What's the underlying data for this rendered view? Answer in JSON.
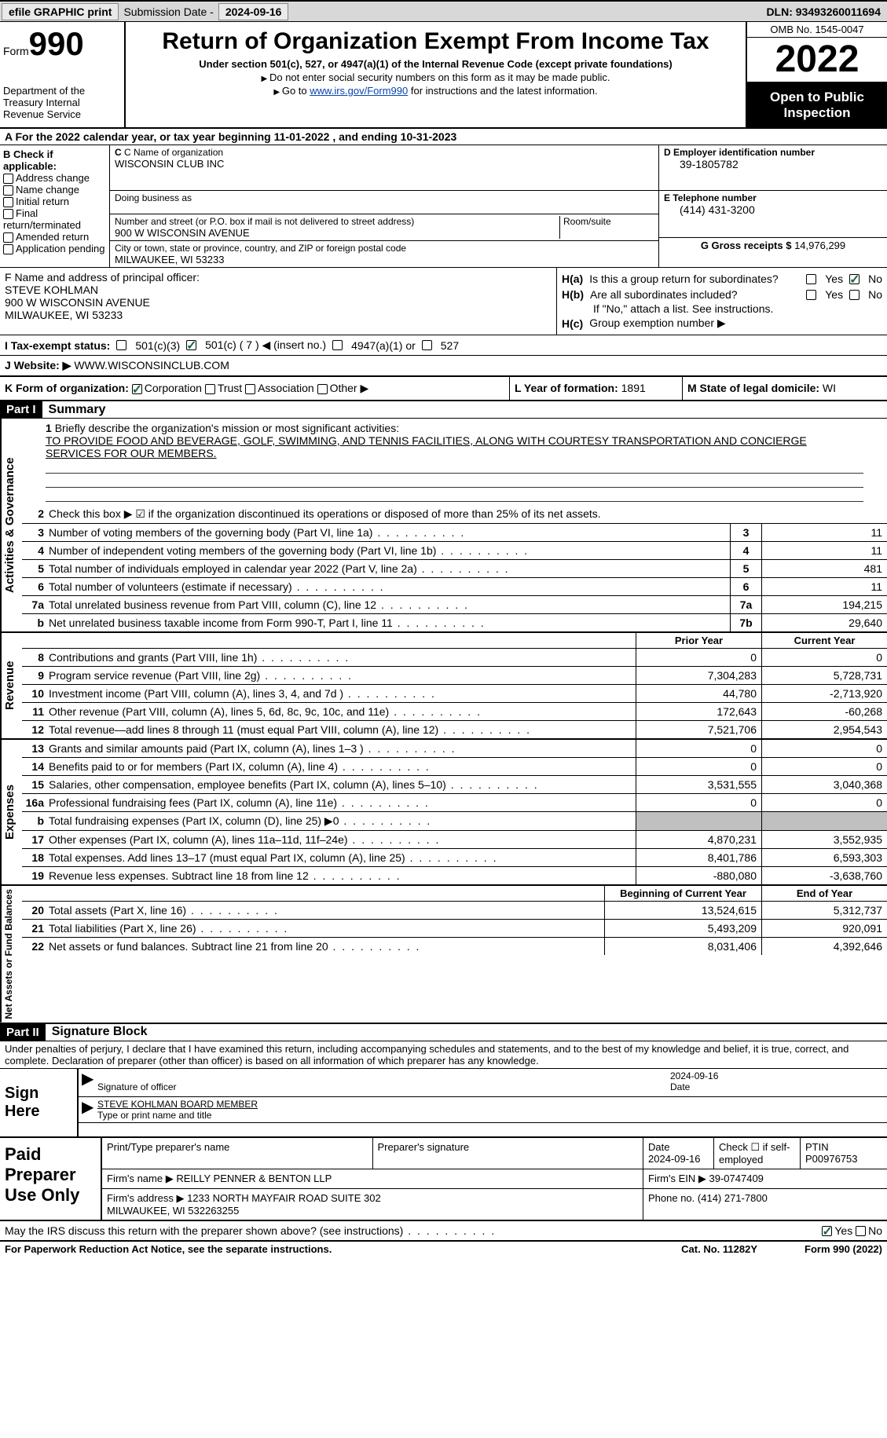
{
  "top": {
    "efile": "efile GRAPHIC print",
    "sub_label": "Submission Date -",
    "sub_date": "2024-09-16",
    "dln_label": "DLN:",
    "dln": "93493260011694"
  },
  "hdr": {
    "form": "Form",
    "num": "990",
    "dept": "Department of the Treasury Internal Revenue Service",
    "title": "Return of Organization Exempt From Income Tax",
    "sub": "Under section 501(c), 527, or 4947(a)(1) of the Internal Revenue Code (except private foundations)",
    "note1": "Do not enter social security numbers on this form as it may be made public.",
    "note2_pre": "Go to ",
    "note2_link": "www.irs.gov/Form990",
    "note2_post": " for instructions and the latest information.",
    "omb": "OMB No. 1545-0047",
    "year": "2022",
    "inspect": "Open to Public Inspection"
  },
  "a": {
    "text": "A For the 2022 calendar year, or tax year beginning 11-01-2022    , and ending 10-31-2023"
  },
  "b": {
    "title": "B Check if applicable:",
    "items": [
      "Address change",
      "Name change",
      "Initial return",
      "Final return/terminated",
      "Amended return",
      "Application pending"
    ]
  },
  "c": {
    "name_label": "C Name of organization",
    "name": "WISCONSIN CLUB INC",
    "dba": "Doing business as",
    "street_label": "Number and street (or P.O. box if mail is not delivered to street address)",
    "street": "900 W WISCONSIN AVENUE",
    "room": "Room/suite",
    "city_label": "City or town, state or province, country, and ZIP or foreign postal code",
    "city": "MILWAUKEE, WI  53233"
  },
  "d": {
    "label": "D Employer identification number",
    "val": "39-1805782"
  },
  "e": {
    "label": "E Telephone number",
    "val": "(414) 431-3200"
  },
  "g": {
    "label": "G Gross receipts $",
    "val": "14,976,299"
  },
  "f": {
    "label": "F  Name and address of principal officer:",
    "name": "STEVE KOHLMAN",
    "street": "900 W WISCONSIN AVENUE",
    "city": "MILWAUKEE, WI  53233"
  },
  "h": {
    "a": "Is this a group return for subordinates?",
    "b": "Are all subordinates included?",
    "b_note": "If \"No,\" attach a list. See instructions.",
    "c": "Group exemption number ▶",
    "yes": "Yes",
    "no": "No"
  },
  "i": {
    "label": "I  Tax-exempt status:",
    "opts": [
      "501(c)(3)",
      "501(c) ( 7 ) ◀ (insert no.)",
      "4947(a)(1) or",
      "527"
    ]
  },
  "j": {
    "label": "J  Website: ▶",
    "val": "WWW.WISCONSINCLUB.COM"
  },
  "k": {
    "label": "K Form of organization:",
    "opts": [
      "Corporation",
      "Trust",
      "Association",
      "Other ▶"
    ]
  },
  "l": {
    "label": "L Year of formation:",
    "val": "1891"
  },
  "m": {
    "label": "M State of legal domicile:",
    "val": "WI"
  },
  "part1": {
    "num": "Part I",
    "title": "Summary"
  },
  "mission": {
    "num": "1",
    "label": "Briefly describe the organization's mission or most significant activities:",
    "text": "TO PROVIDE FOOD AND BEVERAGE, GOLF, SWIMMING, AND TENNIS FACILITIES, ALONG WITH COURTESY TRANSPORTATION AND CONCIERGE SERVICES FOR OUR MEMBERS."
  },
  "q2": {
    "num": "2",
    "text": "Check this box ▶ ☑ if the organization discontinued its operations or disposed of more than 25% of its net assets."
  },
  "gov_rows": [
    {
      "n": "3",
      "t": "Number of voting members of the governing body (Part VI, line 1a)",
      "b": "3",
      "v": "11"
    },
    {
      "n": "4",
      "t": "Number of independent voting members of the governing body (Part VI, line 1b)",
      "b": "4",
      "v": "11"
    },
    {
      "n": "5",
      "t": "Total number of individuals employed in calendar year 2022 (Part V, line 2a)",
      "b": "5",
      "v": "481"
    },
    {
      "n": "6",
      "t": "Total number of volunteers (estimate if necessary)",
      "b": "6",
      "v": "11"
    },
    {
      "n": "7a",
      "t": "Total unrelated business revenue from Part VIII, column (C), line 12",
      "b": "7a",
      "v": "194,215"
    },
    {
      "n": "b",
      "t": "Net unrelated business taxable income from Form 990-T, Part I, line 11",
      "b": "7b",
      "v": "29,640"
    }
  ],
  "yr_hdr": {
    "prior": "Prior Year",
    "curr": "Current Year"
  },
  "rev_rows": [
    {
      "n": "8",
      "t": "Contributions and grants (Part VIII, line 1h)",
      "p": "0",
      "c": "0"
    },
    {
      "n": "9",
      "t": "Program service revenue (Part VIII, line 2g)",
      "p": "7,304,283",
      "c": "5,728,731"
    },
    {
      "n": "10",
      "t": "Investment income (Part VIII, column (A), lines 3, 4, and 7d )",
      "p": "44,780",
      "c": "-2,713,920"
    },
    {
      "n": "11",
      "t": "Other revenue (Part VIII, column (A), lines 5, 6d, 8c, 9c, 10c, and 11e)",
      "p": "172,643",
      "c": "-60,268"
    },
    {
      "n": "12",
      "t": "Total revenue—add lines 8 through 11 (must equal Part VIII, column (A), line 12)",
      "p": "7,521,706",
      "c": "2,954,543"
    }
  ],
  "exp_rows": [
    {
      "n": "13",
      "t": "Grants and similar amounts paid (Part IX, column (A), lines 1–3 )",
      "p": "0",
      "c": "0"
    },
    {
      "n": "14",
      "t": "Benefits paid to or for members (Part IX, column (A), line 4)",
      "p": "0",
      "c": "0"
    },
    {
      "n": "15",
      "t": "Salaries, other compensation, employee benefits (Part IX, column (A), lines 5–10)",
      "p": "3,531,555",
      "c": "3,040,368"
    },
    {
      "n": "16a",
      "t": "Professional fundraising fees (Part IX, column (A), line 11e)",
      "p": "0",
      "c": "0"
    },
    {
      "n": "b",
      "t": "Total fundraising expenses (Part IX, column (D), line 25) ▶0",
      "p": "",
      "c": "",
      "shade": true
    },
    {
      "n": "17",
      "t": "Other expenses (Part IX, column (A), lines 11a–11d, 11f–24e)",
      "p": "4,870,231",
      "c": "3,552,935"
    },
    {
      "n": "18",
      "t": "Total expenses. Add lines 13–17 (must equal Part IX, column (A), line 25)",
      "p": "8,401,786",
      "c": "6,593,303"
    },
    {
      "n": "19",
      "t": "Revenue less expenses. Subtract line 18 from line 12",
      "p": "-880,080",
      "c": "-3,638,760"
    }
  ],
  "na_hdr": {
    "begin": "Beginning of Current Year",
    "end": "End of Year"
  },
  "na_rows": [
    {
      "n": "20",
      "t": "Total assets (Part X, line 16)",
      "p": "13,524,615",
      "c": "5,312,737"
    },
    {
      "n": "21",
      "t": "Total liabilities (Part X, line 26)",
      "p": "5,493,209",
      "c": "920,091"
    },
    {
      "n": "22",
      "t": "Net assets or fund balances. Subtract line 21 from line 20",
      "p": "8,031,406",
      "c": "4,392,646"
    }
  ],
  "part2": {
    "num": "Part II",
    "title": "Signature Block"
  },
  "sig": {
    "decl": "Under penalties of perjury, I declare that I have examined this return, including accompanying schedules and statements, and to the best of my knowledge and belief, it is true, correct, and complete. Declaration of preparer (other than officer) is based on all information of which preparer has any knowledge.",
    "sign_here": "Sign Here",
    "sig_officer": "Signature of officer",
    "date": "Date",
    "date_val": "2024-09-16",
    "name_title": "STEVE KOHLMAN  BOARD MEMBER",
    "name_label": "Type or print name and title"
  },
  "prep": {
    "label": "Paid Preparer Use Only",
    "h1": "Print/Type preparer's name",
    "h2": "Preparer's signature",
    "h3": "Date",
    "date": "2024-09-16",
    "h4": "Check ☐ if self-employed",
    "h5": "PTIN",
    "ptin": "P00976753",
    "firm_name_l": "Firm's name    ▶",
    "firm_name": "REILLY PENNER & BENTON LLP",
    "firm_ein_l": "Firm's EIN ▶",
    "firm_ein": "39-0747409",
    "firm_addr_l": "Firm's address ▶",
    "firm_addr": "1233 NORTH MAYFAIR ROAD SUITE 302\nMILWAUKEE, WI  532263255",
    "phone_l": "Phone no.",
    "phone": "(414) 271-7800"
  },
  "discuss": {
    "q": "May the IRS discuss this return with the preparer shown above? (see instructions)",
    "yes": "Yes",
    "no": "No"
  },
  "footer": {
    "l": "For Paperwork Reduction Act Notice, see the separate instructions.",
    "m": "Cat. No. 11282Y",
    "r": "Form 990 (2022)"
  },
  "sides": {
    "gov": "Activities & Governance",
    "rev": "Revenue",
    "exp": "Expenses",
    "na": "Net Assets or Fund Balances"
  }
}
